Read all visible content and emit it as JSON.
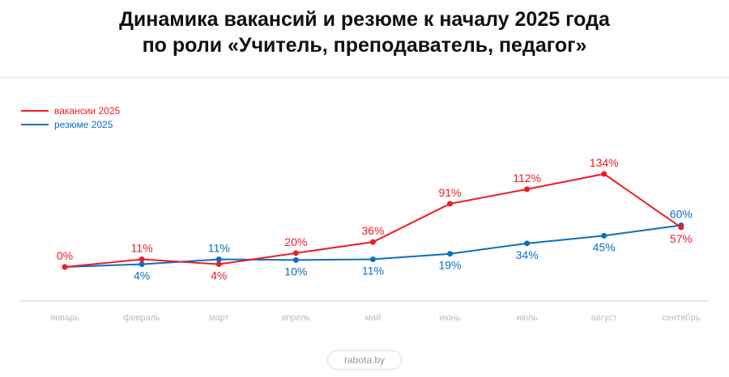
{
  "chart_data": {
    "type": "line",
    "title": "Динамика вакансий и резюме к началу 2025 года",
    "subtitle": "по роли «Учитель, преподаватель, педагог»",
    "categories": [
      "январь",
      "февраль",
      "март",
      "апрель",
      "май",
      "июнь",
      "июль",
      "август",
      "сентябрь"
    ],
    "series": [
      {
        "name": "вакансии 2025",
        "color": "#ee1c25",
        "values": [
          0,
          11,
          4,
          20,
          36,
          91,
          112,
          134,
          57
        ],
        "label_below": [
          false,
          false,
          true,
          false,
          false,
          false,
          false,
          false,
          true
        ]
      },
      {
        "name": "резюме 2025",
        "color": "#0a6fc2",
        "values": [
          0,
          4,
          11,
          10,
          11,
          19,
          34,
          45,
          60
        ],
        "label_below": [
          null,
          true,
          false,
          true,
          true,
          true,
          true,
          true,
          false
        ]
      }
    ],
    "value_suffix": "%",
    "ylim": [
      0,
      134
    ],
    "grid": false,
    "legend_position": "top-left"
  },
  "footer": {
    "brand": "rabota.by"
  }
}
